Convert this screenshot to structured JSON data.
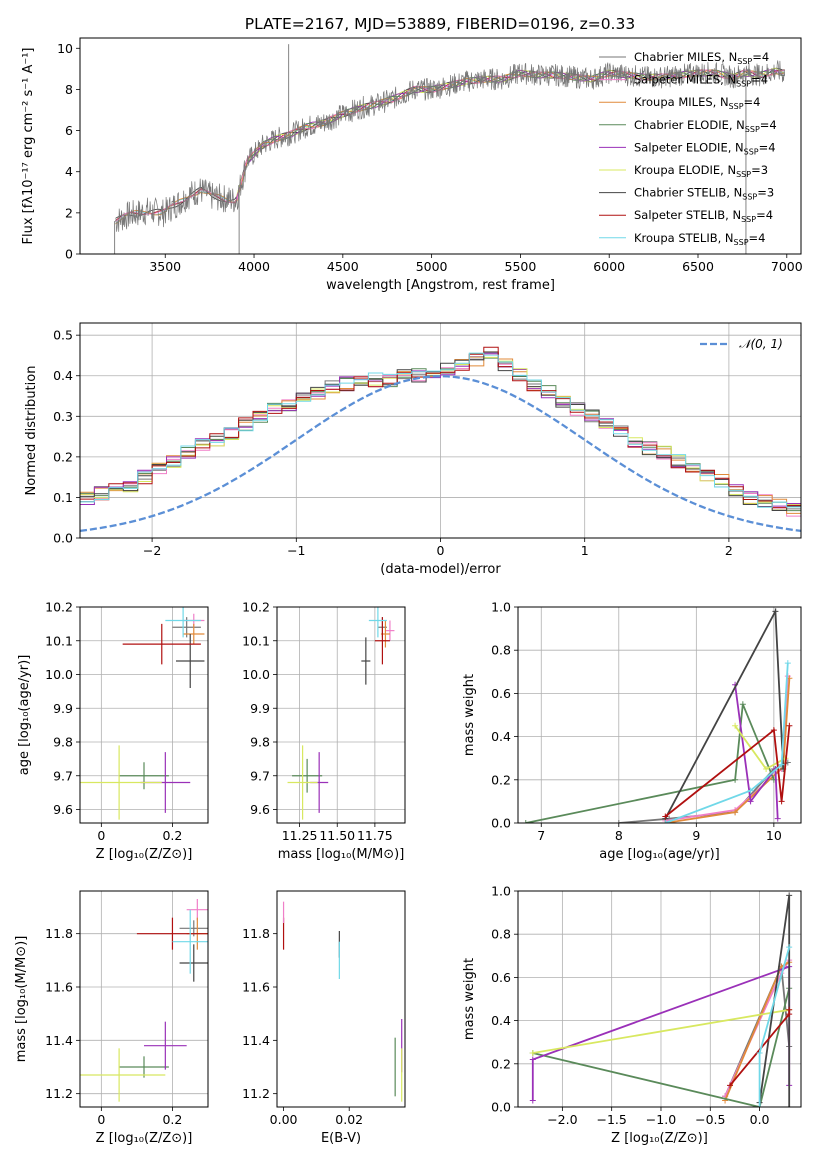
{
  "figure": {
    "title": "PLATE=2167, MJD=53889, FIBERID=0196, z=0.33"
  },
  "colors": {
    "Chabrier MILES": "#777777",
    "Salpeter MILES": "#f07fc8",
    "Kroupa MILES": "#e08a3a",
    "Chabrier ELODIE": "#5a8a5a",
    "Salpeter ELODIE": "#9a30b8",
    "Kroupa ELODIE": "#d8e860",
    "Chabrier STELIB": "#444444",
    "Salpeter STELIB": "#b01010",
    "Kroupa STELIB": "#70d8e8",
    "normal": "#5b8fd6",
    "grid": "#b0b0b0"
  },
  "legend_labels": [
    {
      "text": "Chabrier MILES, N",
      "sub": "SSP",
      "tail": "=4",
      "series": "Chabrier MILES"
    },
    {
      "text": "Salpeter MILES, N",
      "sub": "SSP",
      "tail": "=4",
      "series": "Salpeter MILES"
    },
    {
      "text": "Kroupa MILES, N",
      "sub": "SSP",
      "tail": "=4",
      "series": "Kroupa MILES"
    },
    {
      "text": "Chabrier ELODIE, N",
      "sub": "SSP",
      "tail": "=4",
      "series": "Chabrier ELODIE"
    },
    {
      "text": "Salpeter ELODIE, N",
      "sub": "SSP",
      "tail": "=4",
      "series": "Salpeter ELODIE"
    },
    {
      "text": "Kroupa ELODIE, N",
      "sub": "SSP",
      "tail": "=3",
      "series": "Kroupa ELODIE"
    },
    {
      "text": "Chabrier STELIB, N",
      "sub": "SSP",
      "tail": "=3",
      "series": "Chabrier STELIB"
    },
    {
      "text": "Salpeter STELIB, N",
      "sub": "SSP",
      "tail": "=4",
      "series": "Salpeter STELIB"
    },
    {
      "text": "Kroupa STELIB, N",
      "sub": "SSP",
      "tail": "=4",
      "series": "Kroupa STELIB"
    }
  ],
  "chart_data": [
    {
      "id": "spectrum",
      "type": "line",
      "xlabel": "wavelength [Angstrom, rest frame]",
      "ylabel": "Flux [fλ10⁻¹⁷ erg cm⁻² s⁻¹ A⁻¹]",
      "xlim": [
        3020,
        7080
      ],
      "ylim": [
        0,
        10.5
      ],
      "xticks": [
        3500,
        4000,
        4500,
        5000,
        5500,
        6000,
        6500,
        7000
      ],
      "yticks": [
        0,
        2,
        4,
        6,
        8,
        10
      ],
      "grid": false,
      "legend_loc": "right",
      "continuum": [
        [
          3220,
          1.6
        ],
        [
          3300,
          1.9
        ],
        [
          3400,
          2.1
        ],
        [
          3490,
          2.0
        ],
        [
          3560,
          2.4
        ],
        [
          3640,
          2.9
        ],
        [
          3700,
          3.1
        ],
        [
          3760,
          2.8
        ],
        [
          3830,
          2.7
        ],
        [
          3900,
          2.6
        ],
        [
          3960,
          4.5
        ],
        [
          4050,
          5.3
        ],
        [
          4120,
          5.6
        ],
        [
          4200,
          5.8
        ],
        [
          4300,
          6.2
        ],
        [
          4400,
          6.4
        ],
        [
          4500,
          6.8
        ],
        [
          4600,
          7.1
        ],
        [
          4700,
          7.3
        ],
        [
          4800,
          7.6
        ],
        [
          4900,
          8.0
        ],
        [
          5000,
          8.0
        ],
        [
          5100,
          8.2
        ],
        [
          5200,
          8.4
        ],
        [
          5300,
          8.5
        ],
        [
          5400,
          8.5
        ],
        [
          5500,
          8.8
        ],
        [
          5600,
          8.7
        ],
        [
          5700,
          8.7
        ],
        [
          5800,
          8.6
        ],
        [
          5900,
          8.5
        ],
        [
          6000,
          8.8
        ],
        [
          6100,
          8.7
        ],
        [
          6200,
          8.6
        ],
        [
          6300,
          8.6
        ],
        [
          6400,
          8.7
        ],
        [
          6500,
          8.8
        ],
        [
          6600,
          8.8
        ],
        [
          6700,
          8.6
        ],
        [
          6760,
          8.8
        ],
        [
          6850,
          8.7
        ],
        [
          6940,
          8.9
        ],
        [
          6980,
          8.8
        ]
      ],
      "spikes": [
        [
          4195,
          10.2
        ],
        [
          3916,
          0.0
        ],
        [
          6770,
          0.0
        ],
        [
          3215,
          0.0
        ]
      ]
    },
    {
      "id": "residuals",
      "type": "histogram",
      "xlabel": "(data-model)/error",
      "ylabel": "Normed distribution",
      "xlim": [
        -2.5,
        2.5
      ],
      "ylim": [
        0,
        0.53
      ],
      "xticks": [
        -2,
        -1,
        0,
        1,
        2
      ],
      "yticks": [
        0.0,
        0.1,
        0.2,
        0.3,
        0.4,
        0.5
      ],
      "grid": true,
      "legend_loc": "top-right",
      "normal_label": "𝒩(0, 1)",
      "bin_width": 0.1,
      "base_values": [
        0.02,
        0.025,
        0.035,
        0.045,
        0.05,
        0.055,
        0.06,
        0.07,
        0.08,
        0.09,
        0.1,
        0.11,
        0.12,
        0.13,
        0.15,
        0.17,
        0.19,
        0.21,
        0.23,
        0.24,
        0.26,
        0.28,
        0.3,
        0.32,
        0.33,
        0.35,
        0.36,
        0.37,
        0.38,
        0.38,
        0.39,
        0.39,
        0.4,
        0.4,
        0.41,
        0.42,
        0.43,
        0.44,
        0.46,
        0.43,
        0.4,
        0.38,
        0.36,
        0.34,
        0.32,
        0.3,
        0.28,
        0.26,
        0.24,
        0.22,
        0.21,
        0.19,
        0.17,
        0.15,
        0.14,
        0.12,
        0.1,
        0.09,
        0.08,
        0.07,
        0.06,
        0.055,
        0.05,
        0.045,
        0.04,
        0.035,
        0.03,
        0.028,
        0.025,
        0.02
      ]
    },
    {
      "id": "age-vs-Z",
      "type": "errorbar",
      "xlabel": "Z [log₁₀(Z/Z⊙)]",
      "ylabel": "age  [log₁₀(age/yr)]",
      "xlim": [
        -0.06,
        0.3
      ],
      "ylim": [
        9.56,
        10.2
      ],
      "xticks": [
        0.0,
        0.2
      ],
      "yticks": [
        9.6,
        9.7,
        9.8,
        9.9,
        10.0,
        10.1,
        10.2
      ],
      "grid": true,
      "points": [
        {
          "series": "Chabrier MILES",
          "x": 0.24,
          "y": 10.14,
          "xerr": 0.04,
          "yerr": 0.03
        },
        {
          "series": "Salpeter MILES",
          "x": 0.26,
          "y": 10.16,
          "xerr": 0.03,
          "yerr": 0.02
        },
        {
          "series": "Kroupa MILES",
          "x": 0.26,
          "y": 10.12,
          "xerr": 0.03,
          "yerr": 0.03
        },
        {
          "series": "Chabrier ELODIE",
          "x": 0.12,
          "y": 9.7,
          "xerr": 0.07,
          "yerr": 0.04
        },
        {
          "series": "Salpeter ELODIE",
          "x": 0.18,
          "y": 9.68,
          "xerr": 0.07,
          "yerr": 0.09
        },
        {
          "series": "Kroupa ELODIE",
          "x": 0.05,
          "y": 9.68,
          "xerr": 0.12,
          "yerr": 0.11
        },
        {
          "series": "Chabrier STELIB",
          "x": 0.25,
          "y": 10.04,
          "xerr": 0.04,
          "yerr": 0.08
        },
        {
          "series": "Salpeter STELIB",
          "x": 0.17,
          "y": 10.09,
          "xerr": 0.11,
          "yerr": 0.06
        },
        {
          "series": "Kroupa STELIB",
          "x": 0.23,
          "y": 10.16,
          "xerr": 0.05,
          "yerr": 0.05
        }
      ]
    },
    {
      "id": "age-vs-mass",
      "type": "errorbar",
      "xlabel": "mass [log₁₀(M/M⊙)]",
      "ylabel": "",
      "xlim": [
        11.1,
        11.95
      ],
      "ylim": [
        9.56,
        10.2
      ],
      "xticks": [
        11.25,
        11.5,
        11.75
      ],
      "yticks": [
        9.6,
        9.7,
        9.8,
        9.9,
        10.0,
        10.1,
        10.2
      ],
      "grid": true,
      "points": [
        {
          "series": "Chabrier MILES",
          "x": 11.8,
          "y": 10.14,
          "xerr": 0.03,
          "yerr": 0.03
        },
        {
          "series": "Salpeter MILES",
          "x": 11.85,
          "y": 10.13,
          "xerr": 0.03,
          "yerr": 0.03
        },
        {
          "series": "Kroupa MILES",
          "x": 11.82,
          "y": 10.12,
          "xerr": 0.03,
          "yerr": 0.04
        },
        {
          "series": "Chabrier ELODIE",
          "x": 11.3,
          "y": 9.7,
          "xerr": 0.1,
          "yerr": 0.05
        },
        {
          "series": "Salpeter ELODIE",
          "x": 11.38,
          "y": 9.68,
          "xerr": 0.06,
          "yerr": 0.09
        },
        {
          "series": "Kroupa ELODIE",
          "x": 11.27,
          "y": 9.68,
          "xerr": 0.1,
          "yerr": 0.11
        },
        {
          "series": "Chabrier STELIB",
          "x": 11.69,
          "y": 10.04,
          "xerr": 0.03,
          "yerr": 0.07
        },
        {
          "series": "Salpeter STELIB",
          "x": 11.8,
          "y": 10.1,
          "xerr": 0.05,
          "yerr": 0.07
        },
        {
          "series": "Kroupa STELIB",
          "x": 11.77,
          "y": 10.16,
          "xerr": 0.06,
          "yerr": 0.05
        }
      ]
    },
    {
      "id": "mass-weight-vs-age",
      "type": "line",
      "xlabel": "age  [log₁₀(age/yr)]",
      "ylabel": "mass weight",
      "xlim": [
        6.7,
        10.35
      ],
      "ylim": [
        0,
        1.0
      ],
      "xticks": [
        7,
        8,
        9,
        10
      ],
      "yticks": [
        0.0,
        0.2,
        0.4,
        0.6,
        0.8,
        1.0
      ],
      "grid": true,
      "series": [
        {
          "name": "Chabrier MILES",
          "points": [
            [
              8.0,
              0.0
            ],
            [
              8.65,
              0.02
            ],
            [
              9.5,
              0.05
            ],
            [
              10.0,
              0.25
            ],
            [
              10.18,
              0.28
            ]
          ]
        },
        {
          "name": "Salpeter MILES",
          "points": [
            [
              8.6,
              0.01
            ],
            [
              9.5,
              0.06
            ],
            [
              10.1,
              0.25
            ],
            [
              10.18,
              0.68
            ]
          ]
        },
        {
          "name": "Kroupa MILES",
          "points": [
            [
              8.6,
              0.0
            ],
            [
              9.5,
              0.05
            ],
            [
              10.12,
              0.26
            ],
            [
              10.2,
              0.67
            ]
          ]
        },
        {
          "name": "Chabrier ELODIE",
          "points": [
            [
              6.8,
              0.0
            ],
            [
              9.5,
              0.2
            ],
            [
              9.6,
              0.55
            ],
            [
              10.0,
              0.2
            ]
          ]
        },
        {
          "name": "Salpeter ELODIE",
          "points": [
            [
              9.5,
              0.64
            ],
            [
              9.7,
              0.1
            ],
            [
              10.02,
              0.25
            ],
            [
              10.05,
              0.02
            ]
          ]
        },
        {
          "name": "Kroupa ELODIE",
          "points": [
            [
              9.5,
              0.45
            ],
            [
              9.9,
              0.25
            ],
            [
              10.15,
              0.3
            ]
          ]
        },
        {
          "name": "Chabrier STELIB",
          "points": [
            [
              8.6,
              0.02
            ],
            [
              10.02,
              0.98
            ],
            [
              10.12,
              0.25
            ]
          ]
        },
        {
          "name": "Salpeter STELIB",
          "points": [
            [
              8.6,
              0.03
            ],
            [
              10.0,
              0.43
            ],
            [
              10.1,
              0.1
            ],
            [
              10.2,
              0.45
            ]
          ]
        },
        {
          "name": "Kroupa STELIB",
          "points": [
            [
              8.6,
              0.0
            ],
            [
              9.7,
              0.15
            ],
            [
              10.1,
              0.27
            ],
            [
              10.18,
              0.74
            ]
          ]
        }
      ]
    },
    {
      "id": "mass-vs-Z",
      "type": "errorbar",
      "xlabel": "Z [log₁₀(Z/Z⊙)]",
      "ylabel": "mass [log₁₀(M/M⊙)]",
      "xlim": [
        -0.06,
        0.3
      ],
      "ylim": [
        11.15,
        11.96
      ],
      "xticks": [
        0.0,
        0.2
      ],
      "yticks": [
        11.2,
        11.4,
        11.6,
        11.8
      ],
      "grid": true,
      "points": [
        {
          "series": "Chabrier MILES",
          "x": 0.26,
          "y": 11.82,
          "xerr": 0.04,
          "yerr": 0.03
        },
        {
          "series": "Salpeter MILES",
          "x": 0.27,
          "y": 11.89,
          "xerr": 0.03,
          "yerr": 0.04
        },
        {
          "series": "Kroupa MILES",
          "x": 0.27,
          "y": 11.8,
          "xerr": 0.03,
          "yerr": 0.06
        },
        {
          "series": "Chabrier ELODIE",
          "x": 0.12,
          "y": 11.3,
          "xerr": 0.07,
          "yerr": 0.04
        },
        {
          "series": "Salpeter ELODIE",
          "x": 0.18,
          "y": 11.38,
          "xerr": 0.06,
          "yerr": 0.09
        },
        {
          "series": "Kroupa ELODIE",
          "x": 0.05,
          "y": 11.27,
          "xerr": 0.13,
          "yerr": 0.1
        },
        {
          "series": "Chabrier STELIB",
          "x": 0.26,
          "y": 11.69,
          "xerr": 0.04,
          "yerr": 0.07
        },
        {
          "series": "Salpeter STELIB",
          "x": 0.2,
          "y": 11.8,
          "xerr": 0.1,
          "yerr": 0.06
        },
        {
          "series": "Kroupa STELIB",
          "x": 0.25,
          "y": 11.77,
          "xerr": 0.05,
          "yerr": 0.12
        }
      ]
    },
    {
      "id": "mass-vs-ebv",
      "type": "errorbar",
      "xlabel": "E(B-V)",
      "ylabel": "",
      "xlim": [
        -0.002,
        0.037
      ],
      "ylim": [
        11.15,
        11.96
      ],
      "xticks": [
        0.0,
        0.02
      ],
      "yticks": [
        11.2,
        11.4,
        11.6,
        11.8
      ],
      "grid": false,
      "points": [
        {
          "series": "Salpeter STELIB",
          "x": 0.0,
          "y": 11.8,
          "xerr": 0.0,
          "yerr": 0.06
        },
        {
          "series": "Salpeter MILES",
          "x": 0.0,
          "y": 11.88,
          "xerr": 0.0,
          "yerr": 0.04
        },
        {
          "series": "Chabrier STELIB",
          "x": 0.017,
          "y": 11.76,
          "xerr": 0.0,
          "yerr": 0.05
        },
        {
          "series": "Kroupa STELIB",
          "x": 0.017,
          "y": 11.7,
          "xerr": 0.0,
          "yerr": 0.07
        },
        {
          "series": "Chabrier ELODIE",
          "x": 0.034,
          "y": 11.3,
          "xerr": 0.0,
          "yerr": 0.11
        },
        {
          "series": "Salpeter ELODIE",
          "x": 0.036,
          "y": 11.38,
          "xerr": 0.0,
          "yerr": 0.1
        },
        {
          "series": "Kroupa ELODIE",
          "x": 0.036,
          "y": 11.27,
          "xerr": 0.0,
          "yerr": 0.1
        }
      ]
    },
    {
      "id": "mass-weight-vs-Z",
      "type": "line",
      "xlabel": "Z [log₁₀(Z/Z⊙)]",
      "ylabel": "mass weight",
      "xlim": [
        -2.45,
        0.42
      ],
      "ylim": [
        0,
        1.0
      ],
      "xticks": [
        -2.0,
        -1.5,
        -1.0,
        -0.5,
        0.0
      ],
      "yticks": [
        0.0,
        0.2,
        0.4,
        0.6,
        0.8,
        1.0
      ],
      "grid": true,
      "series": [
        {
          "name": "Chabrier MILES",
          "points": [
            [
              -0.35,
              0.05
            ],
            [
              0.22,
              0.65
            ],
            [
              0.3,
              0.28
            ]
          ]
        },
        {
          "name": "Salpeter MILES",
          "points": [
            [
              -0.35,
              0.05
            ],
            [
              0.22,
              0.62
            ],
            [
              0.3,
              0.68
            ]
          ]
        },
        {
          "name": "Kroupa MILES",
          "points": [
            [
              -0.35,
              0.03
            ],
            [
              0.22,
              0.65
            ],
            [
              0.3,
              0.67
            ]
          ]
        },
        {
          "name": "Chabrier ELODIE",
          "points": [
            [
              -2.3,
              0.25
            ],
            [
              0.0,
              0.0
            ],
            [
              0.3,
              0.55
            ]
          ]
        },
        {
          "name": "Salpeter ELODIE",
          "points": [
            [
              -2.3,
              0.03
            ],
            [
              -2.3,
              0.22
            ],
            [
              0.3,
              0.65
            ],
            [
              0.3,
              0.1
            ]
          ]
        },
        {
          "name": "Kroupa ELODIE",
          "points": [
            [
              -2.3,
              0.25
            ],
            [
              0.3,
              0.45
            ]
          ]
        },
        {
          "name": "Chabrier STELIB",
          "points": [
            [
              0.0,
              0.02
            ],
            [
              0.3,
              0.98
            ],
            [
              0.3,
              0.0
            ]
          ]
        },
        {
          "name": "Salpeter STELIB",
          "points": [
            [
              -0.3,
              0.1
            ],
            [
              0.3,
              0.43
            ],
            [
              0.3,
              0.45
            ]
          ]
        },
        {
          "name": "Kroupa STELIB",
          "points": [
            [
              0.0,
              0.0
            ],
            [
              0.0,
              0.25
            ],
            [
              0.3,
              0.74
            ]
          ]
        }
      ]
    }
  ]
}
